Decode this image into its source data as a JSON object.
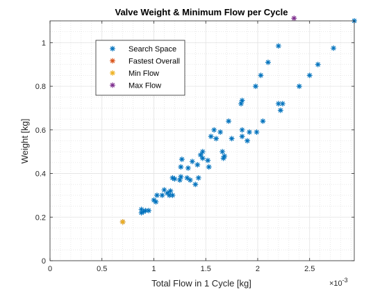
{
  "chart_data": {
    "type": "scatter",
    "title": "Valve Weight & Minimum Flow per Cycle",
    "xlabel": "Total Flow in 1 Cycle [kg]",
    "ylabel": "Weight [kg]",
    "x_exponent_base": "×10",
    "x_exponent_power": "-3",
    "x_scale": 0.001,
    "xlim": [
      0,
      2.93
    ],
    "ylim": [
      0,
      1.1
    ],
    "xticks": [
      0,
      0.5,
      1,
      1.5,
      2,
      2.5
    ],
    "xtick_labels": [
      "0",
      "0.5",
      "1",
      "1.5",
      "2",
      "2.5"
    ],
    "yticks": [
      0,
      0.2,
      0.4,
      0.6,
      0.8,
      1
    ],
    "ytick_labels": [
      "0",
      "0.2",
      "0.4",
      "0.6",
      "0.8",
      "1"
    ],
    "grid": true,
    "minor_grid": true,
    "legend_position": "top-left",
    "marker": "*",
    "series": [
      {
        "name": "Search Space",
        "color": "#0072BD",
        "points": [
          [
            0.7,
            0.178
          ],
          [
            0.88,
            0.22
          ],
          [
            0.88,
            0.235
          ],
          [
            0.9,
            0.225
          ],
          [
            0.92,
            0.23
          ],
          [
            0.95,
            0.23
          ],
          [
            1.0,
            0.278
          ],
          [
            1.02,
            0.27
          ],
          [
            1.03,
            0.3
          ],
          [
            1.08,
            0.3
          ],
          [
            1.1,
            0.325
          ],
          [
            1.13,
            0.31
          ],
          [
            1.15,
            0.3
          ],
          [
            1.16,
            0.32
          ],
          [
            1.18,
            0.3
          ],
          [
            1.18,
            0.38
          ],
          [
            1.2,
            0.375
          ],
          [
            1.25,
            0.37
          ],
          [
            1.26,
            0.385
          ],
          [
            1.26,
            0.43
          ],
          [
            1.27,
            0.465
          ],
          [
            1.32,
            0.38
          ],
          [
            1.33,
            0.425
          ],
          [
            1.35,
            0.37
          ],
          [
            1.37,
            0.455
          ],
          [
            1.4,
            0.35
          ],
          [
            1.42,
            0.44
          ],
          [
            1.43,
            0.38
          ],
          [
            1.45,
            0.485
          ],
          [
            1.47,
            0.5
          ],
          [
            1.47,
            0.47
          ],
          [
            1.52,
            0.46
          ],
          [
            1.53,
            0.43
          ],
          [
            1.55,
            0.57
          ],
          [
            1.58,
            0.6
          ],
          [
            1.6,
            0.56
          ],
          [
            1.64,
            0.59
          ],
          [
            1.66,
            0.5
          ],
          [
            1.67,
            0.47
          ],
          [
            1.68,
            0.48
          ],
          [
            1.72,
            0.64
          ],
          [
            1.75,
            0.56
          ],
          [
            1.84,
            0.72
          ],
          [
            1.85,
            0.735
          ],
          [
            1.85,
            0.57
          ],
          [
            1.85,
            0.6
          ],
          [
            1.9,
            0.55
          ],
          [
            1.92,
            0.59
          ],
          [
            1.98,
            0.8
          ],
          [
            1.99,
            0.59
          ],
          [
            2.03,
            0.85
          ],
          [
            2.05,
            0.64
          ],
          [
            2.1,
            0.91
          ],
          [
            2.2,
            0.985
          ],
          [
            2.2,
            0.72
          ],
          [
            2.22,
            0.69
          ],
          [
            2.24,
            0.72
          ],
          [
            2.4,
            0.8
          ],
          [
            2.5,
            0.85
          ],
          [
            2.58,
            0.9
          ],
          [
            2.73,
            0.975
          ],
          [
            2.93,
            1.1
          ]
        ]
      },
      {
        "name": "Fastest Overall",
        "color": "#D95319",
        "points": [
          [
            0.7,
            0.178
          ]
        ]
      },
      {
        "name": "Min Flow",
        "color": "#EDB120",
        "points": [
          [
            0.7,
            0.178
          ]
        ]
      },
      {
        "name": "Max Flow",
        "color": "#7E2F8E",
        "points": [
          [
            2.35,
            1.112
          ]
        ]
      }
    ]
  }
}
